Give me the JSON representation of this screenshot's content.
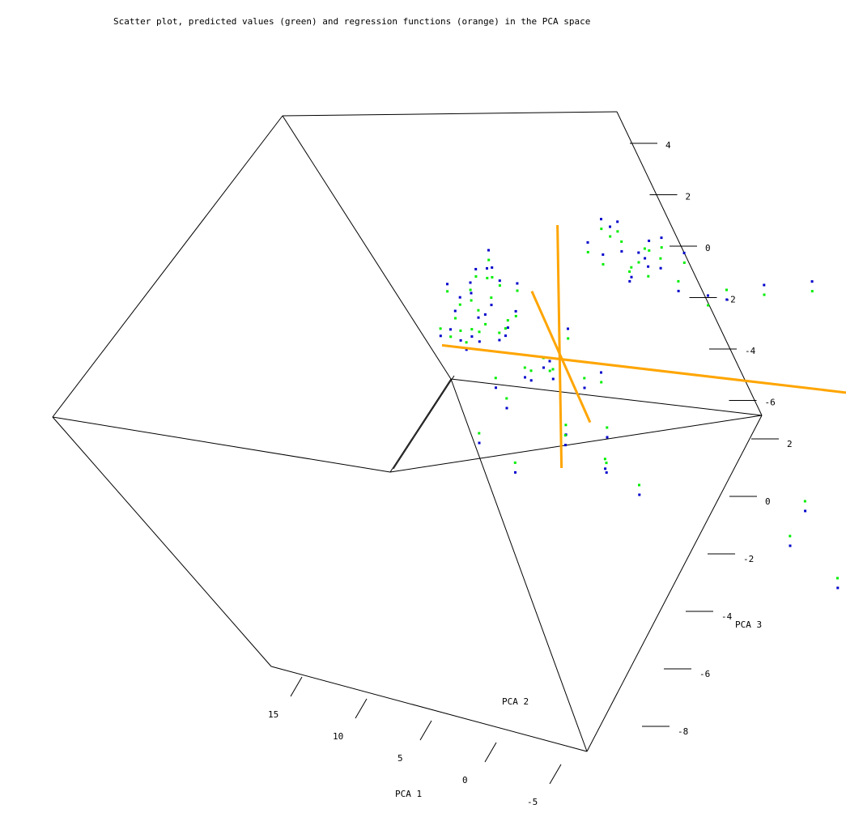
{
  "chart_data": {
    "type": "scatter",
    "projection": "3d",
    "title": "Scatter plot, predicted values (green) and regression functions (orange) in the PCA space",
    "axes": {
      "x": {
        "label": "PCA 1",
        "ticks": [
          15,
          10,
          5,
          0,
          -5
        ],
        "range": [
          18,
          -6
        ]
      },
      "y": {
        "label": "PCA 2",
        "ticks": [],
        "range": [
          -6,
          6
        ]
      },
      "z": {
        "label": "PCA 3",
        "ticks": [
          4,
          2,
          0,
          -2,
          -4,
          -6
        ],
        "range": [
          -6,
          5
        ]
      },
      "z_lower_block": {
        "ticks": [
          2,
          0,
          -2,
          -4,
          -6,
          -8
        ]
      }
    },
    "colors": {
      "observed": "#0000cc",
      "predicted": "#00ee00",
      "regression": "#ffa500",
      "box": "#000000"
    },
    "series": [
      {
        "name": "observed",
        "color": "#0000cc",
        "points": [
          [
            -2,
            2.5,
            1
          ],
          [
            -2.2,
            2,
            0.5
          ],
          [
            -1.5,
            2.8,
            -0.3
          ],
          [
            -2.5,
            1.2,
            -1
          ],
          [
            -1,
            2,
            0.2
          ],
          [
            -2.8,
            2.2,
            -0.8
          ],
          [
            -3,
            1.5,
            0
          ],
          [
            -1.8,
            3,
            -1.5
          ],
          [
            -2.4,
            2.7,
            -2
          ],
          [
            -3.2,
            2.4,
            -1.2
          ],
          [
            -2.6,
            1.8,
            -2.5
          ],
          [
            -3.5,
            2,
            -1.6
          ],
          [
            -1.2,
            1.5,
            -0.7
          ],
          [
            -2,
            1,
            -1.8
          ],
          [
            -3.8,
            1.6,
            -2.2
          ],
          [
            -4,
            2.4,
            -3
          ],
          [
            -3,
            3.2,
            -3.4
          ],
          [
            -2.7,
            2.6,
            -2.8
          ],
          [
            -1.6,
            1.2,
            -1.3
          ],
          [
            -2.3,
            3.4,
            -0.4
          ],
          [
            -3.3,
            1.1,
            -2.6
          ],
          [
            -1.4,
            2.4,
            -2.3
          ],
          [
            -3.6,
            2.8,
            -1
          ],
          [
            -2.1,
            1.6,
            0.8
          ],
          [
            3,
            3,
            3
          ],
          [
            4,
            2.5,
            2.5
          ],
          [
            3.5,
            3.2,
            2
          ],
          [
            5,
            2.8,
            3.2
          ],
          [
            2.5,
            2.2,
            2.2
          ],
          [
            4.5,
            3.5,
            1.8
          ],
          [
            6,
            3.2,
            2.6
          ],
          [
            3.2,
            2.6,
            3.5
          ],
          [
            5.5,
            2.2,
            1.5
          ],
          [
            2.8,
            3.6,
            2.9
          ],
          [
            4.2,
            1.8,
            2.4
          ],
          [
            3.8,
            2.9,
            1.2
          ],
          [
            7.5,
            2.5,
            1.5
          ],
          [
            6.5,
            1.5,
            2
          ],
          [
            5.2,
            3.8,
            1.4
          ],
          [
            2.2,
            3.4,
            1.9
          ],
          [
            9,
            2.5,
            2.5
          ],
          [
            11,
            2.8,
            3
          ],
          [
            4.8,
            4,
            2.3
          ],
          [
            3.4,
            1.6,
            1.7
          ],
          [
            0,
            -2,
            1
          ],
          [
            0.5,
            -2.5,
            -1
          ],
          [
            -1,
            -3,
            0
          ],
          [
            1,
            -4,
            -2
          ],
          [
            -0.5,
            -1.5,
            -1.5
          ],
          [
            0,
            2,
            -3
          ],
          [
            -2,
            0,
            -4
          ],
          [
            1.2,
            -3,
            -4
          ],
          [
            -0.8,
            -4.5,
            -2.5
          ],
          [
            0.6,
            1,
            -5
          ],
          [
            -1.5,
            -1,
            -2
          ],
          [
            2,
            -5,
            -3.5
          ],
          [
            -2.2,
            -2,
            -5.5
          ],
          [
            8,
            -5,
            -4
          ],
          [
            10,
            -4.5,
            -5.5
          ],
          [
            12,
            -5.5,
            -5
          ],
          [
            13,
            -4,
            -3
          ],
          [
            15,
            -3,
            2
          ],
          [
            9,
            -3.5,
            -3.2
          ],
          [
            -3,
            0.5,
            -6
          ],
          [
            -1.7,
            -2.8,
            -1.1
          ],
          [
            0.9,
            -3.6,
            0.4
          ],
          [
            -2.6,
            -0.7,
            -2.9
          ],
          [
            1.5,
            -1.6,
            -4.6
          ]
        ]
      },
      {
        "name": "predicted",
        "color": "#00ee00",
        "points": [
          [
            -2,
            2.5,
            0.6
          ],
          [
            -2.2,
            2,
            0.1
          ],
          [
            -1.5,
            2.8,
            -0.5
          ],
          [
            -2.5,
            1.2,
            -1.4
          ],
          [
            -1,
            2,
            -0.1
          ],
          [
            -2.8,
            2.2,
            -1.1
          ],
          [
            -3,
            1.5,
            -0.3
          ],
          [
            -1.8,
            3,
            -1.2
          ],
          [
            -2.4,
            2.7,
            -1.7
          ],
          [
            -3.2,
            2.4,
            -1.5
          ],
          [
            -2.6,
            1.8,
            -2.1
          ],
          [
            -3.5,
            2,
            -1.9
          ],
          [
            -1.2,
            1.5,
            -0.9
          ],
          [
            -2,
            1,
            -1.5
          ],
          [
            -3.8,
            1.6,
            -2.5
          ],
          [
            -4,
            2.4,
            -2.7
          ],
          [
            -3,
            3.2,
            -3
          ],
          [
            -2.7,
            2.6,
            -2.5
          ],
          [
            -1.6,
            1.2,
            -1
          ],
          [
            -2.3,
            3.4,
            -0.7
          ],
          [
            -3.3,
            1.1,
            -2.3
          ],
          [
            -1.4,
            2.4,
            -2
          ],
          [
            -3.6,
            2.8,
            -1.3
          ],
          [
            -2.1,
            1.6,
            0.4
          ],
          [
            3,
            3,
            2.6
          ],
          [
            4,
            2.5,
            2.1
          ],
          [
            3.5,
            3.2,
            2.4
          ],
          [
            5,
            2.8,
            2.8
          ],
          [
            2.5,
            2.2,
            1.8
          ],
          [
            4.5,
            3.5,
            2.2
          ],
          [
            6,
            3.2,
            2.2
          ],
          [
            3.2,
            2.6,
            3.1
          ],
          [
            5.5,
            2.2,
            1.9
          ],
          [
            2.8,
            3.6,
            2.5
          ],
          [
            4.2,
            1.8,
            2
          ],
          [
            3.8,
            2.9,
            1.6
          ],
          [
            7.5,
            2.5,
            1.9
          ],
          [
            6.5,
            1.5,
            1.6
          ],
          [
            5.2,
            3.8,
            1.8
          ],
          [
            2.2,
            3.4,
            1.5
          ],
          [
            9,
            2.5,
            2.1
          ],
          [
            11,
            2.8,
            2.6
          ],
          [
            4.8,
            4,
            1.9
          ],
          [
            3.4,
            1.6,
            2.1
          ],
          [
            0,
            -2,
            0.6
          ],
          [
            0.5,
            -2.5,
            -0.6
          ],
          [
            -1,
            -3,
            -0.4
          ],
          [
            1,
            -4,
            -1.6
          ],
          [
            -0.5,
            -1.5,
            -1.1
          ],
          [
            0,
            2,
            -2.6
          ],
          [
            -2,
            0,
            -3.6
          ],
          [
            1.2,
            -3,
            -3.6
          ],
          [
            -0.8,
            -4.5,
            -2.1
          ],
          [
            0.6,
            1,
            -4.6
          ],
          [
            -1.5,
            -1,
            -1.6
          ],
          [
            2,
            -5,
            -3.1
          ],
          [
            -2.2,
            -2,
            -5.1
          ],
          [
            8,
            -5,
            -3.6
          ],
          [
            10,
            -4.5,
            -5.1
          ],
          [
            12,
            -5.5,
            -4.6
          ],
          [
            13,
            -4,
            -2.6
          ],
          [
            15,
            -3,
            1.6
          ],
          [
            9,
            -3.5,
            -2.8
          ],
          [
            -3,
            0.5,
            -5.6
          ],
          [
            -1.7,
            -2.8,
            -0.7
          ],
          [
            0.9,
            -3.6,
            0
          ],
          [
            -2.6,
            -0.7,
            -2.5
          ],
          [
            1.5,
            -1.6,
            -4.2
          ]
        ]
      }
    ],
    "regression_lines": [
      {
        "from": [
          14,
          0.2,
          0.5
        ],
        "to": [
          -4.5,
          0.2,
          -2.2
        ]
      },
      {
        "from": [
          0.2,
          -4.5,
          -1.3
        ],
        "to": [
          0.2,
          4.5,
          -1.3
        ]
      },
      {
        "from": [
          0.2,
          0.2,
          4
        ],
        "to": [
          0.2,
          0.2,
          -6
        ]
      }
    ]
  }
}
